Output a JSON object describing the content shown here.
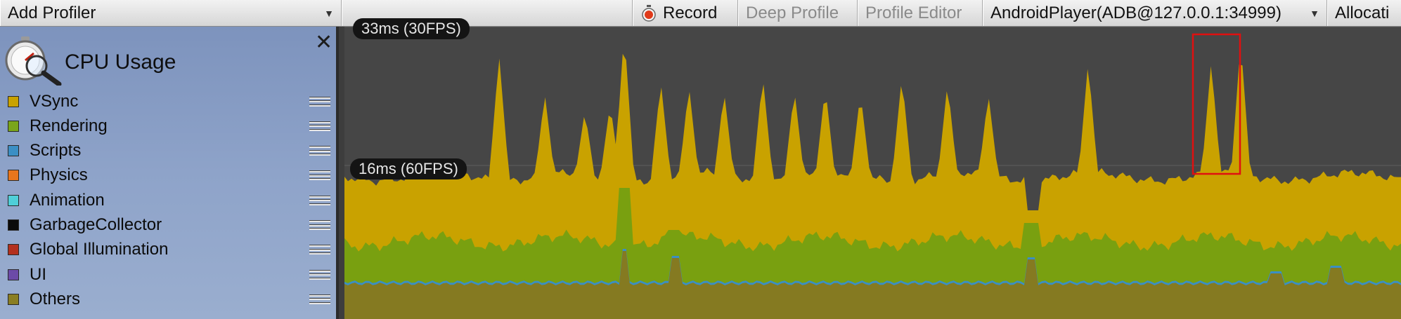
{
  "toolbar": {
    "add_profiler": "Add Profiler",
    "record": "Record",
    "deep_profile": "Deep Profile",
    "profile_editor": "Profile Editor",
    "target": "AndroidPlayer(ADB@127.0.0.1:34999)",
    "allocation": "Allocati"
  },
  "module": {
    "title": "CPU Usage",
    "icon": "stopwatch-magnifier-icon",
    "close_icon": "close-icon",
    "legend": [
      {
        "label": "VSync",
        "color": "#c9a200"
      },
      {
        "label": "Rendering",
        "color": "#7aa51a"
      },
      {
        "label": "Scripts",
        "color": "#3b8fc4"
      },
      {
        "label": "Physics",
        "color": "#e8761d"
      },
      {
        "label": "Animation",
        "color": "#4fcfd8"
      },
      {
        "label": "GarbageCollector",
        "color": "#0b0b0b"
      },
      {
        "label": "Global Illumination",
        "color": "#b3301e"
      },
      {
        "label": "UI",
        "color": "#6c4ba8"
      },
      {
        "label": "Others",
        "color": "#8a7e22"
      }
    ]
  },
  "graph": {
    "label_30fps": "33ms (30FPS)",
    "label_60fps": "16ms (60FPS)",
    "colors": {
      "vsync": "#c9a200",
      "rendering": "#79a010",
      "scripts": "#3b8fc4",
      "others": "#857a21",
      "selection": "#e01010",
      "background": "#464646"
    }
  }
}
